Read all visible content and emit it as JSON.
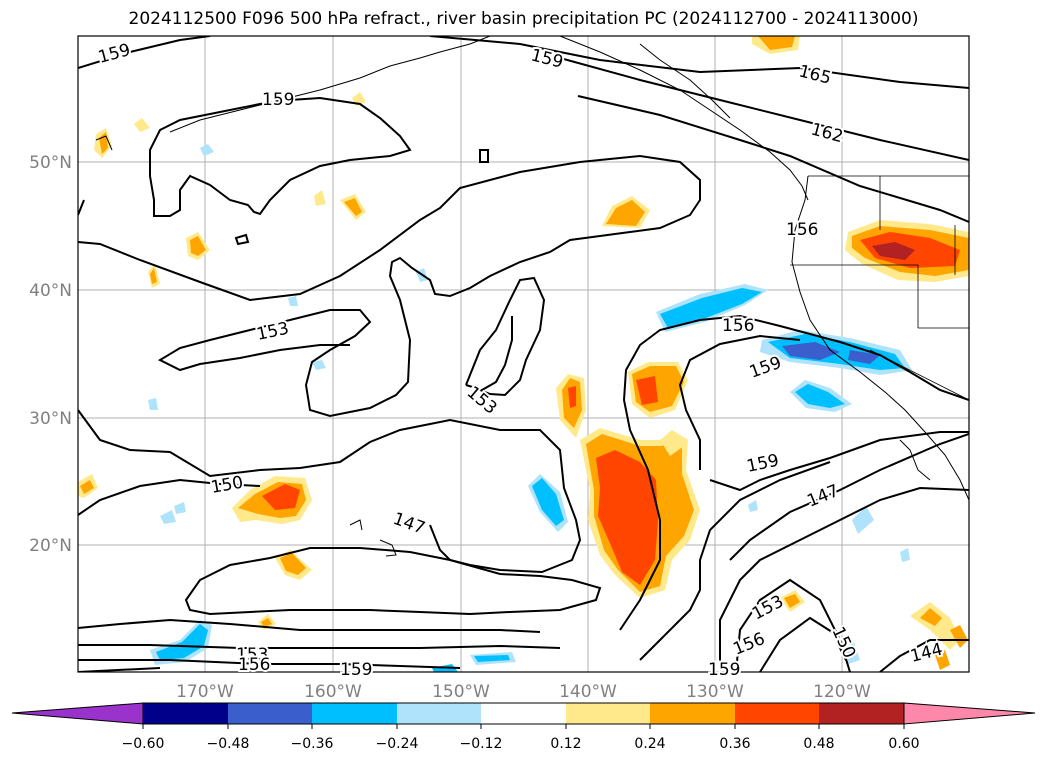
{
  "title": "2024112500 F096 500 hPa refract., river basin precipitation PC (2024112700 - 2024113000)",
  "lat_labels": [
    "50°N",
    "40°N",
    "30°N",
    "20°N"
  ],
  "lon_labels": [
    "170°W",
    "160°W",
    "150°W",
    "140°W",
    "130°W",
    "120°W"
  ],
  "contour_labels": [
    "159",
    "159",
    "159",
    "165",
    "162",
    "156",
    "156",
    "153",
    "153",
    "150",
    "147",
    "159",
    "159",
    "147",
    "153",
    "153",
    "156",
    "156",
    "159",
    "159",
    "150",
    "144"
  ],
  "colorbar": {
    "ticks": [
      "−0.60",
      "−0.48",
      "−0.36",
      "−0.24",
      "−0.12",
      "0.12",
      "0.24",
      "0.36",
      "0.48",
      "0.60"
    ],
    "colors": [
      "#9933cc",
      "#00008b",
      "#3a5fcd",
      "#00bfff",
      "#aee3fb",
      "#ffffff",
      "#ffe98a",
      "#ffa500",
      "#ff4500",
      "#b22222",
      "#ff88aa"
    ]
  },
  "colors": {
    "light_yellow": "#ffe98a",
    "orange": "#ffa500",
    "red_orange": "#ff4500",
    "dark_red": "#b22222",
    "light_blue": "#aee3fb",
    "sky_blue": "#00bfff",
    "royal_blue": "#3a5fcd",
    "grid": "#b0b0b0"
  }
}
